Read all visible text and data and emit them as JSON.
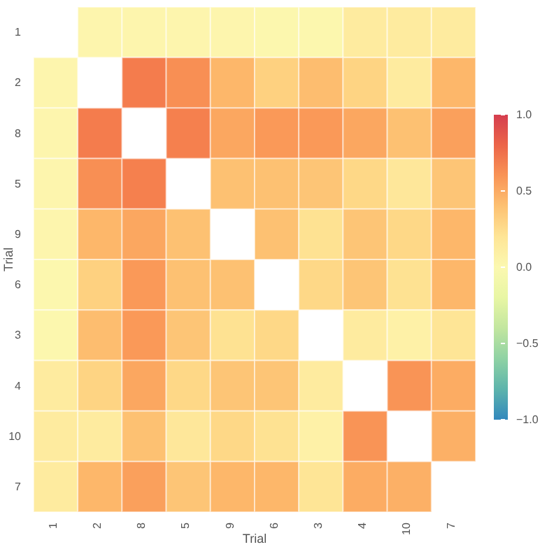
{
  "chart_data": {
    "type": "heatmap",
    "xlabel": "Trial",
    "ylabel": "Trial",
    "categories": [
      "1",
      "2",
      "8",
      "5",
      "9",
      "6",
      "3",
      "4",
      "10",
      "7"
    ],
    "y_categories": [
      "1",
      "2",
      "8",
      "5",
      "9",
      "6",
      "3",
      "4",
      "10",
      "7"
    ],
    "cells": [
      [
        null,
        0.05,
        0.05,
        0.05,
        0.05,
        0.03,
        0.03,
        0.15,
        0.15,
        0.15
      ],
      [
        0.05,
        null,
        0.7,
        0.62,
        0.45,
        0.32,
        0.42,
        0.3,
        0.15,
        0.45
      ],
      [
        0.05,
        0.7,
        null,
        0.68,
        0.52,
        0.58,
        0.58,
        0.52,
        0.4,
        0.55
      ],
      [
        0.05,
        0.62,
        0.68,
        null,
        0.4,
        0.4,
        0.38,
        0.28,
        0.18,
        0.38
      ],
      [
        0.05,
        0.45,
        0.52,
        0.4,
        null,
        0.4,
        0.22,
        0.38,
        0.28,
        0.45
      ],
      [
        0.03,
        0.32,
        0.58,
        0.4,
        0.4,
        null,
        0.28,
        0.38,
        0.22,
        0.45
      ],
      [
        0.03,
        0.42,
        0.58,
        0.38,
        0.22,
        0.28,
        null,
        0.15,
        0.1,
        0.2
      ],
      [
        0.15,
        0.3,
        0.52,
        0.28,
        0.38,
        0.38,
        0.15,
        null,
        0.6,
        0.5
      ],
      [
        0.15,
        0.15,
        0.4,
        0.18,
        0.28,
        0.22,
        0.1,
        0.6,
        null,
        0.48
      ],
      [
        0.15,
        0.45,
        0.55,
        0.38,
        0.45,
        0.45,
        0.2,
        0.5,
        0.48,
        null
      ]
    ],
    "clim": [
      -1,
      1
    ],
    "cticks": [
      {
        "value": -1,
        "label": "−1.0"
      },
      {
        "value": -0.5,
        "label": "−0.5"
      },
      {
        "value": 0,
        "label": "0.0"
      },
      {
        "value": 0.5,
        "label": "0.5"
      },
      {
        "value": 1,
        "label": "1.0"
      }
    ]
  }
}
